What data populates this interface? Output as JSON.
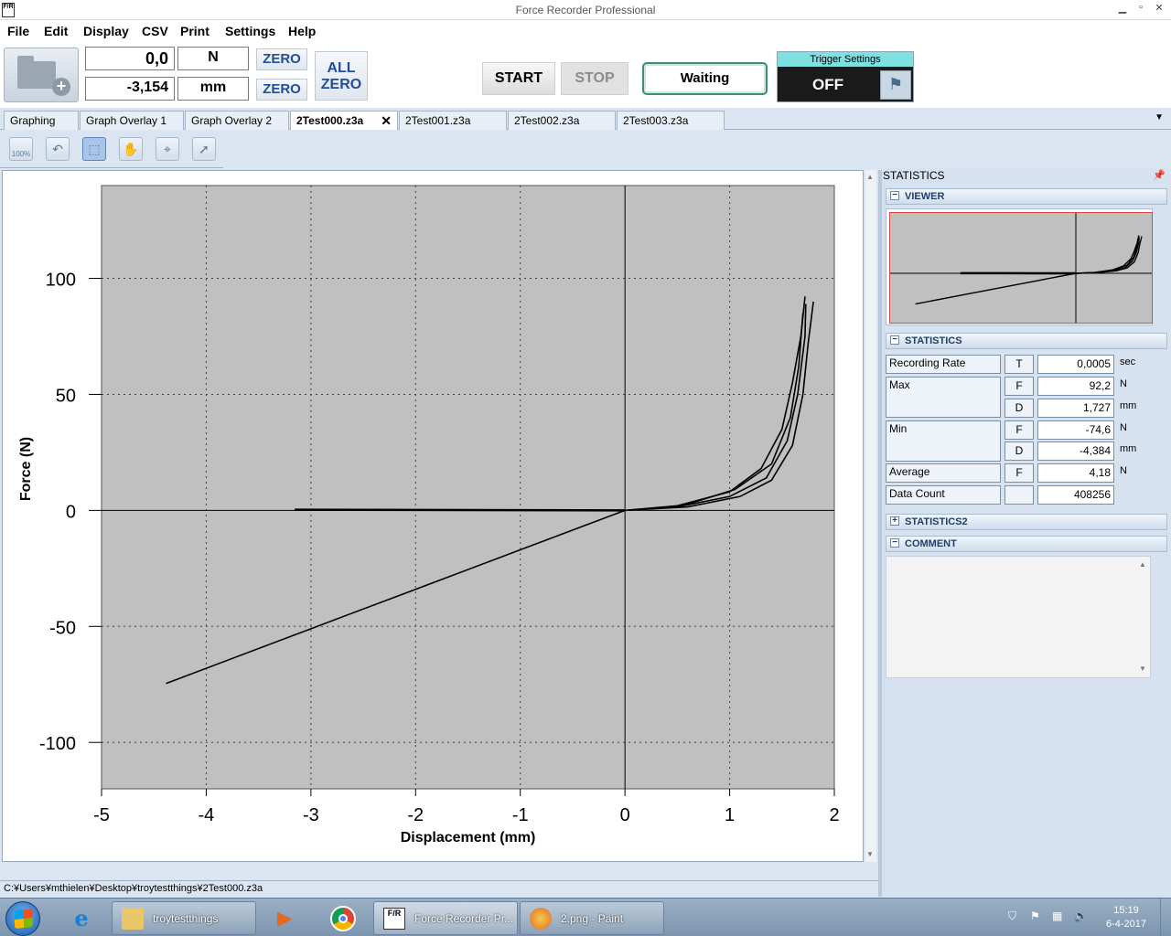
{
  "window": {
    "app_icon": "F/R",
    "title": "Force Recorder Professional",
    "controls": [
      "minimize-icon",
      "maximize-icon",
      "close-icon"
    ]
  },
  "menu": [
    "File",
    "Edit",
    "Display",
    "CSV",
    "Print",
    "Settings",
    "Help"
  ],
  "toolbar": {
    "force_value": "0,0",
    "force_unit": "N",
    "zero_force_label": "ZERO",
    "displacement_value": "-3,154",
    "displacement_unit": "mm",
    "zero_displacement_label": "ZERO",
    "all_zero_line1": "ALL",
    "all_zero_line2": "ZERO",
    "start_label": "START",
    "stop_label": "STOP",
    "status_label": "Waiting",
    "trigger_title": "Trigger Settings",
    "trigger_value": "OFF"
  },
  "tabs": [
    {
      "label": "Graphing",
      "active": false
    },
    {
      "label": "Graph Overlay 1",
      "active": false
    },
    {
      "label": "Graph Overlay 2",
      "active": false
    },
    {
      "label": "2Test000.z3a",
      "active": true
    },
    {
      "label": "2Test001.z3a",
      "active": false
    },
    {
      "label": "2Test002.z3a",
      "active": false
    },
    {
      "label": "2Test003.z3a",
      "active": false
    }
  ],
  "graph_tools": [
    "zoom-100-icon",
    "undo-zoom-icon",
    "box-zoom-icon",
    "pan-hand-icon",
    "crosshair-icon",
    "cursor-icon"
  ],
  "graph_tool_text": {
    "zoom_100": "100%"
  },
  "chart_data": {
    "type": "line",
    "xlabel": "Displacement (mm)",
    "ylabel": "Force (N)",
    "xlim": [
      -5,
      2
    ],
    "ylim": [
      -120,
      140
    ],
    "xticks": [
      -5,
      -4,
      -3,
      -2,
      -1,
      0,
      1,
      2
    ],
    "yticks": [
      -100,
      -50,
      0,
      50,
      100
    ],
    "grid": true,
    "background": "#c0c0c0",
    "series": [
      {
        "x": [
          -4.384,
          -3,
          -2,
          -1,
          0
        ],
        "y": [
          -74.6,
          -51,
          -34,
          -17,
          0
        ]
      },
      {
        "x": [
          -3.154,
          -2,
          -1,
          0
        ],
        "y": [
          0.3,
          0.2,
          0.1,
          0
        ]
      },
      {
        "x": [
          0,
          0.5,
          1.0,
          1.3,
          1.5,
          1.6,
          1.68,
          1.72
        ],
        "y": [
          0,
          2,
          8,
          18,
          35,
          55,
          75,
          92.2
        ]
      },
      {
        "x": [
          0,
          0.5,
          1.0,
          1.35,
          1.55,
          1.65,
          1.72,
          1.727
        ],
        "y": [
          0,
          1.5,
          6,
          14,
          30,
          50,
          75,
          89
        ]
      },
      {
        "x": [
          0,
          0.6,
          1.1,
          1.4,
          1.6,
          1.7,
          1.75,
          1.8
        ],
        "y": [
          0,
          1.5,
          6,
          13,
          28,
          50,
          72,
          90
        ]
      },
      {
        "x": [
          0,
          0.55,
          1.05,
          1.4,
          1.58,
          1.66,
          1.7
        ],
        "y": [
          0,
          2,
          9,
          20,
          40,
          62,
          85
        ]
      }
    ]
  },
  "statusbar": {
    "path": "C:¥Users¥mthielen¥Desktop¥troytestthings¥2Test000.z3a"
  },
  "right_pane": {
    "title": "STATISTICS",
    "sections": {
      "viewer": "VIEWER",
      "statistics": "STATISTICS",
      "statistics2": "STATISTICS2",
      "comment": "COMMENT"
    },
    "rows": [
      {
        "label": "Recording Rate",
        "code": "T",
        "value": "0,0005",
        "unit": "sec"
      },
      {
        "label": "Max",
        "code": "F",
        "value": "92,2",
        "unit": "N"
      },
      {
        "label": "",
        "code": "D",
        "value": "1,727",
        "unit": "mm"
      },
      {
        "label": "Min",
        "code": "F",
        "value": "-74,6",
        "unit": "N"
      },
      {
        "label": "",
        "code": "D",
        "value": "-4,384",
        "unit": "mm"
      },
      {
        "label": "Average",
        "code": "F",
        "value": "4,18",
        "unit": "N"
      },
      {
        "label": "Data Count",
        "code": "",
        "value": "408256",
        "unit": ""
      }
    ]
  },
  "taskbar": {
    "items": [
      {
        "label": "troytestthings",
        "icon": "folder-icon"
      },
      {
        "label": "Force Recorder Pr...",
        "icon": "force-recorder-icon"
      },
      {
        "label": "2.png - Paint",
        "icon": "paint-icon"
      }
    ],
    "clock_time": "15:19",
    "clock_date": "6-4-2017"
  },
  "colors": {
    "accent_blue": "#1f4e9a",
    "trigger_header": "#7fe0e0",
    "plot_bg": "#c0c0c0",
    "waiting_border": "#3c8c78"
  }
}
